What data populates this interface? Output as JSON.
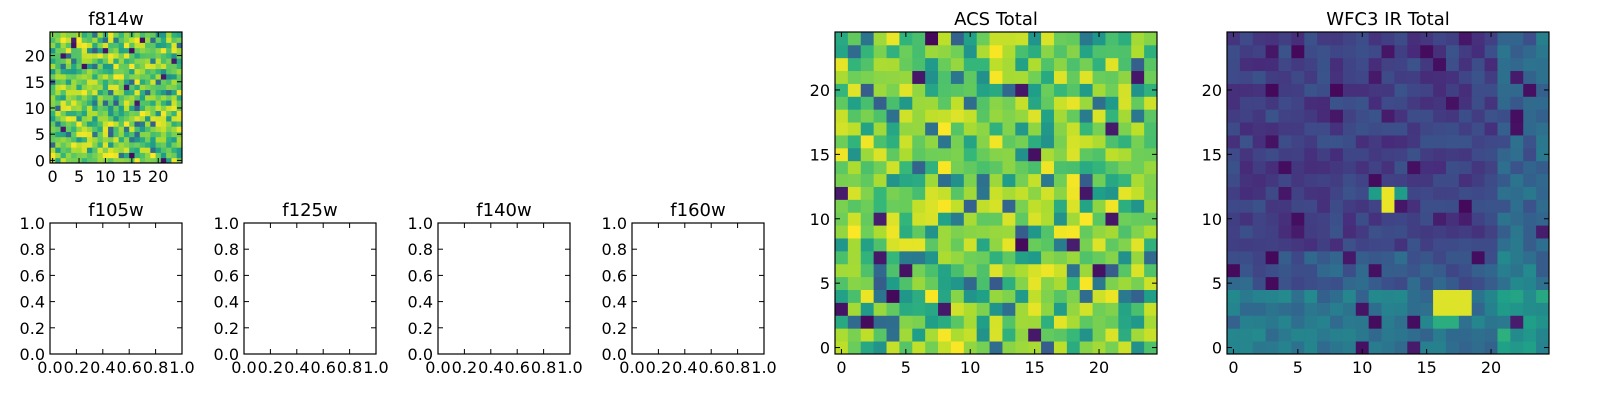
{
  "chart_data": [
    {
      "type": "heatmap",
      "title": "f814w",
      "pattern": "acs",
      "grid_size": 25,
      "xlim": [
        -0.5,
        24.5
      ],
      "ylim": [
        -0.5,
        24.5
      ],
      "xticks": [
        0,
        5,
        10,
        15,
        20
      ],
      "yticks": [
        0,
        5,
        10,
        15,
        20
      ],
      "colormap": "viridis",
      "clim": [
        0,
        1
      ]
    },
    {
      "type": "empty",
      "title": "f105w",
      "xlim": [
        0,
        1
      ],
      "ylim": [
        0,
        1
      ],
      "xticks": [
        "0.0",
        "0.2",
        "0.4",
        "0.6",
        "0.8",
        "1.0"
      ],
      "yticks": [
        "0.0",
        "0.2",
        "0.4",
        "0.6",
        "0.8",
        "1.0"
      ]
    },
    {
      "type": "empty",
      "title": "f125w",
      "xlim": [
        0,
        1
      ],
      "ylim": [
        0,
        1
      ],
      "xticks": [
        "0.0",
        "0.2",
        "0.4",
        "0.6",
        "0.8",
        "1.0"
      ],
      "yticks": [
        "0.0",
        "0.2",
        "0.4",
        "0.6",
        "0.8",
        "1.0"
      ]
    },
    {
      "type": "empty",
      "title": "f140w",
      "xlim": [
        0,
        1
      ],
      "ylim": [
        0,
        1
      ],
      "xticks": [
        "0.0",
        "0.2",
        "0.4",
        "0.6",
        "0.8",
        "1.0"
      ],
      "yticks": [
        "0.0",
        "0.2",
        "0.4",
        "0.6",
        "0.8",
        "1.0"
      ]
    },
    {
      "type": "empty",
      "title": "f160w",
      "xlim": [
        0,
        1
      ],
      "ylim": [
        0,
        1
      ],
      "xticks": [
        "0.0",
        "0.2",
        "0.4",
        "0.6",
        "0.8",
        "1.0"
      ],
      "yticks": [
        "0.0",
        "0.2",
        "0.4",
        "0.6",
        "0.8",
        "1.0"
      ]
    },
    {
      "type": "heatmap",
      "title": "ACS Total",
      "pattern": "acs",
      "grid_size": 25,
      "xlim": [
        -0.5,
        24.5
      ],
      "ylim": [
        -0.5,
        24.5
      ],
      "xticks": [
        0,
        5,
        10,
        15,
        20
      ],
      "yticks": [
        0,
        5,
        10,
        15,
        20
      ],
      "colormap": "viridis",
      "clim": [
        0,
        1
      ]
    },
    {
      "type": "heatmap",
      "title": "WFC3 IR Total",
      "pattern": "wfc3",
      "grid_size": 25,
      "xlim": [
        -0.5,
        24.5
      ],
      "ylim": [
        -0.5,
        24.5
      ],
      "xticks": [
        0,
        5,
        10,
        15,
        20
      ],
      "yticks": [
        0,
        5,
        10,
        15,
        20
      ],
      "colormap": "viridis",
      "clim": [
        0,
        1
      ]
    }
  ],
  "colors": {
    "viridis_stops": [
      "#440154",
      "#482878",
      "#3e4a89",
      "#31688e",
      "#26828e",
      "#1f9e89",
      "#35b779",
      "#6ece58",
      "#b5de2b",
      "#fde725"
    ],
    "axis": "#000000",
    "background": "#ffffff"
  }
}
